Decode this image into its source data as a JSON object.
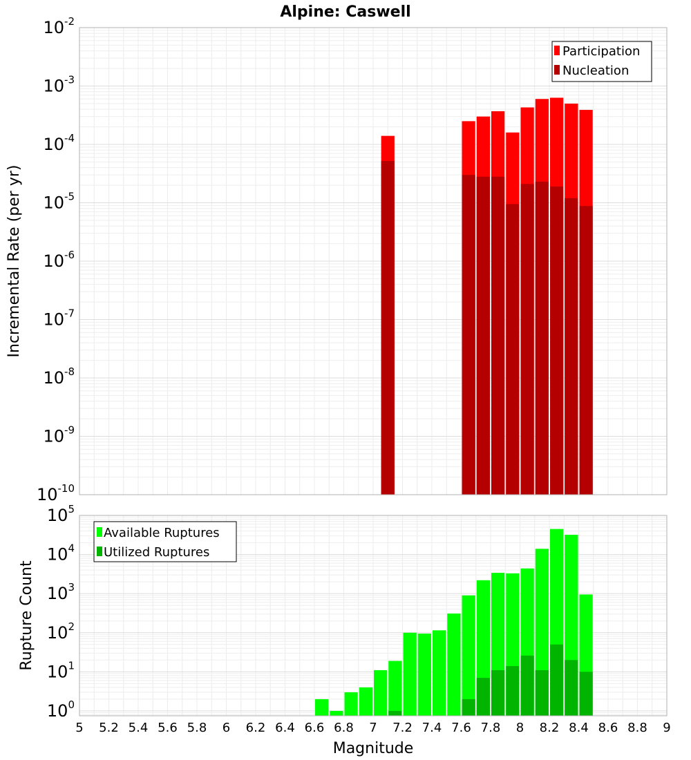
{
  "title": "Alpine: Caswell",
  "colors": {
    "participation": "#ff0000",
    "nucleation": "#b40000",
    "available": "#00ff00",
    "utilized": "#00b400"
  },
  "chart_data": [
    {
      "type": "bar",
      "title": "Alpine: Caswell",
      "xlabel": "Magnitude",
      "ylabel": "Incremental Rate (per yr)",
      "yscale": "log",
      "ylim": [
        1e-10,
        0.01
      ],
      "xlim": [
        5,
        9
      ],
      "bar_width": 0.1,
      "grid": true,
      "legend_position": "top-right",
      "series": [
        {
          "name": "Participation",
          "color": "#ff0000",
          "x": [
            7.1,
            7.65,
            7.75,
            7.85,
            7.95,
            8.05,
            8.15,
            8.25,
            8.35,
            8.45
          ],
          "values": [
            0.00014,
            0.00025,
            0.0003,
            0.00037,
            0.00016,
            0.00043,
            0.0006,
            0.00063,
            0.0005,
            0.00039
          ]
        },
        {
          "name": "Nucleation",
          "color": "#b40000",
          "x": [
            7.1,
            7.65,
            7.75,
            7.85,
            7.95,
            8.05,
            8.15,
            8.25,
            8.35,
            8.45
          ],
          "values": [
            5.2e-05,
            3e-05,
            2.8e-05,
            2.8e-05,
            9.5e-06,
            2.1e-05,
            2.3e-05,
            1.9e-05,
            1.2e-05,
            8.8e-06
          ]
        }
      ],
      "yticks": [
        {
          "base": "10",
          "exp": "-10"
        },
        {
          "base": "10",
          "exp": "-9"
        },
        {
          "base": "10",
          "exp": "-8"
        },
        {
          "base": "10",
          "exp": "-7"
        },
        {
          "base": "10",
          "exp": "-6"
        },
        {
          "base": "10",
          "exp": "-5"
        },
        {
          "base": "10",
          "exp": "-4"
        },
        {
          "base": "10",
          "exp": "-3"
        },
        {
          "base": "10",
          "exp": "-2"
        }
      ]
    },
    {
      "type": "bar",
      "xlabel": "Magnitude",
      "ylabel": "Rupture Count",
      "yscale": "log",
      "ylim": [
        0.75,
        100000
      ],
      "xlim": [
        5,
        9
      ],
      "bar_width": 0.1,
      "grid": true,
      "legend_position": "top-left",
      "series": [
        {
          "name": "Available Ruptures",
          "color": "#00ff00",
          "x": [
            6.65,
            6.75,
            6.85,
            6.95,
            7.05,
            7.15,
            7.25,
            7.35,
            7.45,
            7.55,
            7.65,
            7.75,
            7.85,
            7.95,
            8.05,
            8.15,
            8.25,
            8.35,
            8.45
          ],
          "values": [
            2,
            1,
            3,
            4,
            11,
            19,
            100,
            95,
            115,
            310,
            900,
            2200,
            3400,
            3300,
            4400,
            14000,
            45000,
            32000,
            950
          ]
        },
        {
          "name": "Utilized Ruptures",
          "color": "#00b400",
          "x": [
            7.15,
            7.65,
            7.75,
            7.85,
            7.95,
            8.05,
            8.15,
            8.25,
            8.35,
            8.45
          ],
          "values": [
            1,
            2,
            7,
            11,
            14,
            26,
            11,
            50,
            20,
            10
          ]
        }
      ],
      "yticks": [
        {
          "base": "10",
          "exp": "0"
        },
        {
          "base": "10",
          "exp": "1"
        },
        {
          "base": "10",
          "exp": "2"
        },
        {
          "base": "10",
          "exp": "3"
        },
        {
          "base": "10",
          "exp": "4"
        },
        {
          "base": "10",
          "exp": "5"
        }
      ]
    }
  ],
  "xticks": [
    "5",
    "5.2",
    "5.4",
    "5.6",
    "5.8",
    "6",
    "6.2",
    "6.4",
    "6.6",
    "6.8",
    "7",
    "7.2",
    "7.4",
    "7.6",
    "7.8",
    "8",
    "8.2",
    "8.4",
    "8.6",
    "8.8",
    "9"
  ]
}
